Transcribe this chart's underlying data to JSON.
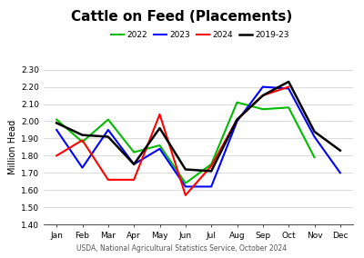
{
  "title": "Cattle on Feed (Placements)",
  "xlabel": "USDA, National Agricultural Statistics Service, October 2024",
  "ylabel": "Million Head",
  "months": [
    "Jan",
    "Feb",
    "Mar",
    "Apr",
    "May",
    "Jun",
    "Jul",
    "Aug",
    "Sep",
    "Oct",
    "Nov",
    "Dec"
  ],
  "series": {
    "2022": {
      "color": "#00bb00",
      "values": [
        2.01,
        1.88,
        2.01,
        1.82,
        1.86,
        1.64,
        1.75,
        2.11,
        2.07,
        2.08,
        1.79,
        null
      ]
    },
    "2023": {
      "color": "#0000ff",
      "values": [
        1.95,
        1.73,
        1.95,
        1.75,
        1.84,
        1.62,
        1.62,
        2.0,
        2.2,
        2.19,
        1.91,
        1.7
      ]
    },
    "2024": {
      "color": "#ff0000",
      "values": [
        1.8,
        1.89,
        1.66,
        1.66,
        2.04,
        1.57,
        1.74,
        2.01,
        2.15,
        2.2,
        null,
        null
      ]
    },
    "2019-23": {
      "color": "#000000",
      "values": [
        1.99,
        1.92,
        1.91,
        1.75,
        1.96,
        1.72,
        1.71,
        2.01,
        2.15,
        2.23,
        1.94,
        1.83
      ]
    }
  },
  "ylim": [
    1.4,
    2.3
  ],
  "yticks": [
    1.4,
    1.5,
    1.6,
    1.7,
    1.8,
    1.9,
    2.0,
    2.1,
    2.2,
    2.3
  ],
  "legend_order": [
    "2022",
    "2023",
    "2024",
    "2019-23"
  ],
  "title_fontsize": 11,
  "axis_fontsize": 6.5,
  "ylabel_fontsize": 7,
  "xlabel_fontsize": 5.5,
  "legend_fontsize": 6.5
}
